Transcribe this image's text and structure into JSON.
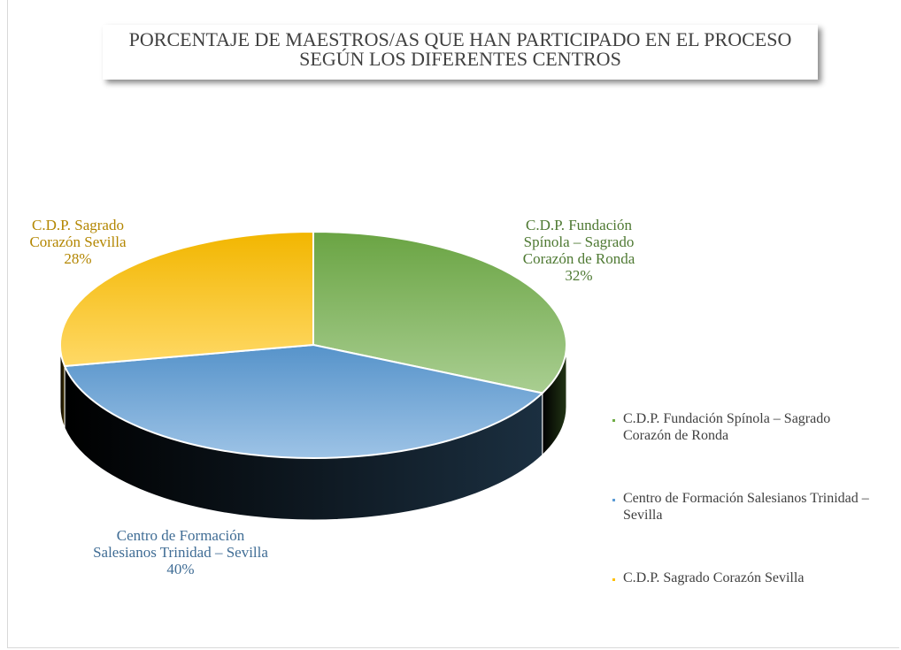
{
  "chart_data": {
    "type": "pie",
    "title": "PORCENTAJE  DE MAESTROS/AS QUE HAN PARTICIPADO EN EL PROCESO SEGÚN LOS DIFERENTES CENTROS",
    "categories": [
      "C.D.P. Fundación Spínola – Sagrado Corazón de Ronda",
      "Centro de Formación Salesianos Trinidad – Sevilla",
      "C.D.P. Sagrado Corazón Sevilla"
    ],
    "values": [
      32,
      40,
      28
    ],
    "value_labels": [
      "32%",
      "40%",
      "28%"
    ],
    "colors": [
      "#70ad47",
      "#5b9bd5",
      "#ffc000"
    ],
    "legend": "right"
  }
}
